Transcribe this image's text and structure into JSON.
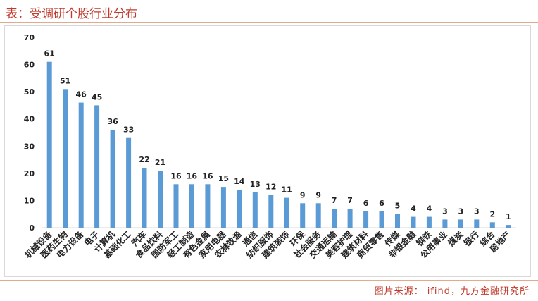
{
  "header": {
    "title": "表：受调研个股行业分布"
  },
  "footer": {
    "source": "图片来源： ifind，九方金融研究所"
  },
  "colors": {
    "bar": "#5b9bd5",
    "accent": "#c0392b",
    "rule": "#e4a98a",
    "axis": "#d9d9d9"
  },
  "chart_data": {
    "type": "bar",
    "title": "",
    "xlabel": "",
    "ylabel": "",
    "ylim": [
      0,
      70
    ],
    "yticks": [
      0,
      10,
      20,
      30,
      40,
      50,
      60,
      70
    ],
    "grid": false,
    "legend": "none",
    "categories": [
      "机械设备",
      "医药生物",
      "电力设备",
      "电子",
      "计算机",
      "基础化工",
      "汽车",
      "食品饮料",
      "国防军工",
      "轻工制造",
      "有色金属",
      "家用电器",
      "农林牧渔",
      "通信",
      "纺织服饰",
      "建筑装饰",
      "环保",
      "社会服务",
      "交通运输",
      "美容护理",
      "建筑材料",
      "商贸零售",
      "传媒",
      "非银金融",
      "钢铁",
      "公用事业",
      "煤炭",
      "银行",
      "综合",
      "房地产"
    ],
    "values": [
      61,
      51,
      46,
      45,
      36,
      33,
      22,
      21,
      16,
      16,
      16,
      15,
      14,
      13,
      12,
      11,
      9,
      9,
      7,
      7,
      6,
      6,
      5,
      4,
      4,
      3,
      3,
      3,
      2,
      1
    ]
  }
}
